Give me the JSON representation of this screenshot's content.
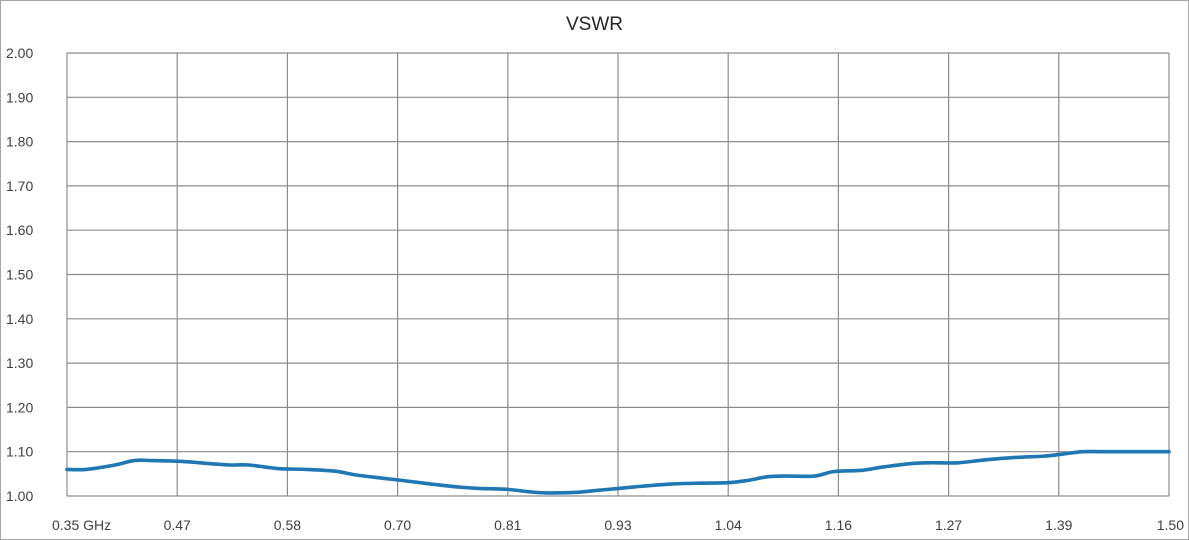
{
  "chart_data": {
    "type": "line",
    "title": "VSWR",
    "xlabel": "",
    "ylabel": "",
    "x_tick_labels": [
      "0.35 GHz",
      "0.47",
      "0.58",
      "0.70",
      "0.81",
      "0.93",
      "1.04",
      "1.16",
      "1.27",
      "1.39",
      "1.50"
    ],
    "y_tick_labels": [
      "1.00",
      "1.10",
      "1.20",
      "1.30",
      "1.40",
      "1.50",
      "1.60",
      "1.70",
      "1.80",
      "1.90",
      "2.00"
    ],
    "xlim": [
      0.35,
      1.5
    ],
    "ylim": [
      1.0,
      2.0
    ],
    "grid": true,
    "legend": "none",
    "series": [
      {
        "color": "#1f77b4",
        "x": [
          0.35,
          0.37,
          0.4,
          0.42,
          0.44,
          0.47,
          0.5,
          0.52,
          0.54,
          0.57,
          0.6,
          0.63,
          0.65,
          0.68,
          0.7,
          0.73,
          0.76,
          0.78,
          0.81,
          0.83,
          0.85,
          0.88,
          0.9,
          0.93,
          0.95,
          0.98,
          1.01,
          1.04,
          1.06,
          1.08,
          1.1,
          1.13,
          1.15,
          1.18,
          1.2,
          1.23,
          1.25,
          1.28,
          1.31,
          1.34,
          1.37,
          1.39,
          1.41,
          1.43,
          1.46,
          1.48,
          1.5
        ],
        "y": [
          1.06,
          1.06,
          1.07,
          1.08,
          1.08,
          1.078,
          1.073,
          1.07,
          1.07,
          1.062,
          1.06,
          1.056,
          1.048,
          1.04,
          1.035,
          1.027,
          1.02,
          1.017,
          1.015,
          1.01,
          1.007,
          1.008,
          1.012,
          1.018,
          1.022,
          1.027,
          1.029,
          1.03,
          1.035,
          1.043,
          1.045,
          1.045,
          1.055,
          1.058,
          1.065,
          1.073,
          1.075,
          1.075,
          1.082,
          1.087,
          1.09,
          1.095,
          1.1,
          1.1,
          1.1,
          1.1,
          1.1
        ]
      }
    ]
  }
}
